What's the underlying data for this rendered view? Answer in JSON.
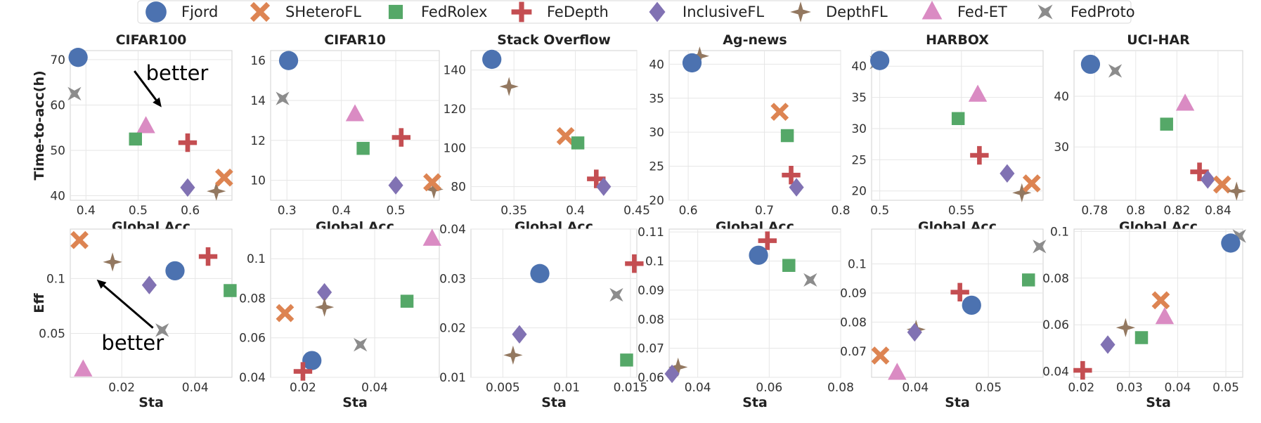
{
  "legend": [
    {
      "name": "Fjord",
      "marker": "circle",
      "color": "#4c72b0"
    },
    {
      "name": "SHeteroFL",
      "marker": "x",
      "color": "#dd8452"
    },
    {
      "name": "FedRolex",
      "marker": "square",
      "color": "#55a868"
    },
    {
      "name": "FeDepth",
      "marker": "plus",
      "color": "#c44e52"
    },
    {
      "name": "InclusiveFL",
      "marker": "diamond",
      "color": "#8172b3"
    },
    {
      "name": "DepthFL",
      "marker": "star4",
      "color": "#937860"
    },
    {
      "name": "Fed-ET",
      "marker": "triangle",
      "color": "#da8bc3"
    },
    {
      "name": "FedProto",
      "marker": "star4x",
      "color": "#8c8c8c"
    }
  ],
  "chart_data": [
    {
      "type": "scatter",
      "title": "CIFAR100",
      "xlabel": "Global Acc",
      "ylabel": "Time-to-acc(h)",
      "xlim": [
        0.37,
        0.68
      ],
      "ylim": [
        39,
        72
      ],
      "xticks": [
        0.4,
        0.5,
        0.6
      ],
      "yticks": [
        40,
        50,
        60,
        70
      ],
      "tick_decimals": 1,
      "points": {
        "Fjord": [
          0.385,
          70.5
        ],
        "FedProto": [
          0.378,
          62.5
        ],
        "Fed-ET": [
          0.515,
          55.3
        ],
        "FedRolex": [
          0.495,
          52.5
        ],
        "FeDepth": [
          0.595,
          51.7
        ],
        "InclusiveFL": [
          0.595,
          41.8
        ],
        "DepthFL": [
          0.65,
          41.0
        ],
        "SHeteroFL": [
          0.665,
          44.0
        ]
      },
      "annotation": {
        "text": "better",
        "text_at": [
          0.515,
          65.5
        ],
        "arrow_from": [
          0.493,
          67.5
        ],
        "arrow_to": [
          0.545,
          59.5
        ]
      }
    },
    {
      "type": "scatter",
      "title": "CIFAR10",
      "xlabel": "Global Acc",
      "ylabel": "",
      "xlim": [
        0.27,
        0.58
      ],
      "ylim": [
        9.0,
        16.5
      ],
      "xticks": [
        0.3,
        0.4,
        0.5
      ],
      "yticks": [
        10,
        12,
        14,
        16
      ],
      "tick_decimals": 1,
      "points": {
        "Fjord": [
          0.303,
          16.0
        ],
        "FedProto": [
          0.292,
          14.1
        ],
        "Fed-ET": [
          0.425,
          13.3
        ],
        "FedRolex": [
          0.44,
          11.6
        ],
        "FeDepth": [
          0.51,
          12.15
        ],
        "InclusiveFL": [
          0.5,
          9.75
        ],
        "DepthFL": [
          0.57,
          9.55
        ],
        "SHeteroFL": [
          0.567,
          9.9
        ]
      }
    },
    {
      "type": "scatter",
      "title": "Stack Overflow",
      "xlabel": "Global Acc",
      "ylabel": "",
      "xlim": [
        0.315,
        0.45
      ],
      "ylim": [
        73,
        150
      ],
      "xticks": [
        0.35,
        0.4,
        0.45
      ],
      "yticks": [
        80,
        100,
        120,
        140
      ],
      "tick_decimals": 2,
      "points": {
        "Fjord": [
          0.332,
          145.5
        ],
        "DepthFL": [
          0.346,
          131.5
        ],
        "SHeteroFL": [
          0.392,
          106.0
        ],
        "FedRolex": [
          0.402,
          102.5
        ],
        "FeDepth": [
          0.417,
          84.0
        ],
        "InclusiveFL": [
          0.423,
          80.0
        ]
      }
    },
    {
      "type": "scatter",
      "title": "Ag-news",
      "xlabel": "Global Acc",
      "ylabel": "",
      "xlim": [
        0.575,
        0.8
      ],
      "ylim": [
        20,
        42
      ],
      "xticks": [
        0.6,
        0.7,
        0.8
      ],
      "yticks": [
        20,
        25,
        30,
        35,
        40
      ],
      "tick_decimals": 1,
      "points": {
        "DepthFL": [
          0.615,
          41.2
        ],
        "Fjord": [
          0.605,
          40.2
        ],
        "SHeteroFL": [
          0.72,
          33.0
        ],
        "FedRolex": [
          0.73,
          29.5
        ],
        "FeDepth": [
          0.735,
          23.7
        ],
        "InclusiveFL": [
          0.742,
          21.9
        ]
      }
    },
    {
      "type": "scatter",
      "title": "HARBOX",
      "xlabel": "Global Acc",
      "ylabel": "",
      "xlim": [
        0.495,
        0.6
      ],
      "ylim": [
        18.5,
        42.5
      ],
      "xticks": [
        0.5,
        0.55
      ],
      "yticks": [
        20,
        25,
        30,
        35,
        40
      ],
      "tick_decimals": 2,
      "points": {
        "FedProto": [
          0.498,
          40.6
        ],
        "Fjord": [
          0.5,
          40.9
        ],
        "Fed-ET": [
          0.56,
          35.4
        ],
        "FedRolex": [
          0.548,
          31.6
        ],
        "FeDepth": [
          0.561,
          25.7
        ],
        "InclusiveFL": [
          0.578,
          22.8
        ],
        "DepthFL": [
          0.587,
          19.7
        ],
        "SHeteroFL": [
          0.593,
          21.2
        ]
      }
    },
    {
      "type": "scatter",
      "title": "UCI-HAR",
      "xlabel": "Global Acc",
      "ylabel": "",
      "xlim": [
        0.77,
        0.852
      ],
      "ylim": [
        19.5,
        49.0
      ],
      "xticks": [
        0.78,
        0.8,
        0.82,
        0.84
      ],
      "yticks": [
        30,
        40
      ],
      "tick_decimals": 2,
      "points": {
        "Fjord": [
          0.778,
          46.3
        ],
        "FedProto": [
          0.79,
          45.0
        ],
        "Fed-ET": [
          0.824,
          38.5
        ],
        "FedRolex": [
          0.815,
          34.5
        ],
        "FeDepth": [
          0.831,
          25.1
        ],
        "InclusiveFL": [
          0.835,
          23.6
        ],
        "SHeteroFL": [
          0.842,
          22.6
        ],
        "DepthFL": [
          0.849,
          21.3
        ]
      }
    },
    {
      "type": "scatter",
      "title": "",
      "xlabel": "Sta",
      "ylabel": "Eff",
      "xlim": [
        0.006,
        0.05
      ],
      "ylim": [
        0.01,
        0.145
      ],
      "xticks": [
        0.02,
        0.04
      ],
      "yticks": [
        0.05,
        0.1
      ],
      "tick_decimals": 2,
      "points": {
        "SHeteroFL": [
          0.0085,
          0.135
        ],
        "DepthFL": [
          0.0175,
          0.115
        ],
        "FeDepth": [
          0.0435,
          0.12
        ],
        "Fjord": [
          0.0345,
          0.107
        ],
        "InclusiveFL": [
          0.0275,
          0.094
        ],
        "FedRolex": [
          0.0495,
          0.089
        ],
        "FedProto": [
          0.031,
          0.053
        ],
        "Fed-ET": [
          0.0095,
          0.017
        ]
      },
      "annotation": {
        "text": "better",
        "text_at": [
          0.0145,
          0.035
        ],
        "arrow_from": [
          0.0285,
          0.055
        ],
        "arrow_to": [
          0.0132,
          0.099
        ]
      }
    },
    {
      "type": "scatter",
      "title": "",
      "xlabel": "Sta",
      "ylabel": "",
      "xlim": [
        0.011,
        0.058
      ],
      "ylim": [
        0.04,
        0.115
      ],
      "xticks": [
        0.02,
        0.04
      ],
      "yticks": [
        0.04,
        0.06,
        0.08,
        0.1
      ],
      "tick_decimals": 2,
      "points": {
        "Fed-ET": [
          0.056,
          0.11
        ],
        "InclusiveFL": [
          0.026,
          0.083
        ],
        "FedRolex": [
          0.049,
          0.0785
        ],
        "DepthFL": [
          0.026,
          0.0755
        ],
        "SHeteroFL": [
          0.015,
          0.0725
        ],
        "FedProto": [
          0.036,
          0.0565
        ],
        "Fjord": [
          0.0225,
          0.0485
        ],
        "FeDepth": [
          0.02,
          0.043
        ]
      }
    },
    {
      "type": "scatter",
      "title": "",
      "xlabel": "Sta",
      "ylabel": "",
      "xlim": [
        0.0025,
        0.0155
      ],
      "ylim": [
        0.01,
        0.04
      ],
      "xticks": [
        0.005,
        0.01,
        0.015
      ],
      "yticks": [
        0.01,
        0.02,
        0.03,
        0.04
      ],
      "tick_decimals": 3,
      "points": {
        "FeDepth": [
          0.0153,
          0.033
        ],
        "Fjord": [
          0.0079,
          0.031
        ],
        "FedProto": [
          0.0139,
          0.0267
        ],
        "InclusiveFL": [
          0.0063,
          0.0187
        ],
        "DepthFL": [
          0.0058,
          0.0145
        ],
        "FedRolex": [
          0.0147,
          0.0135
        ]
      }
    },
    {
      "type": "scatter",
      "title": "",
      "xlabel": "Sta",
      "ylabel": "",
      "xlim": [
        0.032,
        0.08
      ],
      "ylim": [
        0.06,
        0.111
      ],
      "xticks": [
        0.04,
        0.06,
        0.08
      ],
      "yticks": [
        0.06,
        0.07,
        0.08,
        0.09,
        0.1,
        0.11
      ],
      "tick_decimals": 2,
      "points": {
        "FeDepth": [
          0.0595,
          0.107
        ],
        "Fjord": [
          0.057,
          0.102
        ],
        "FedRolex": [
          0.0655,
          0.0985
        ],
        "FedProto": [
          0.0715,
          0.0935
        ],
        "DepthFL": [
          0.0345,
          0.0635
        ],
        "InclusiveFL": [
          0.0328,
          0.0612
        ]
      }
    },
    {
      "type": "scatter",
      "title": "",
      "xlabel": "Sta",
      "ylabel": "",
      "xlim": [
        0.034,
        0.0575
      ],
      "ylim": [
        0.061,
        0.112
      ],
      "xticks": [
        0.04,
        0.05
      ],
      "yticks": [
        0.07,
        0.08,
        0.09,
        0.1
      ],
      "tick_decimals": 2,
      "points": {
        "FedProto": [
          0.057,
          0.106
        ],
        "FedRolex": [
          0.0555,
          0.0945
        ],
        "FeDepth": [
          0.0461,
          0.0903
        ],
        "Fjord": [
          0.0477,
          0.0858
        ],
        "DepthFL": [
          0.0401,
          0.0775
        ],
        "InclusiveFL": [
          0.0399,
          0.0765
        ],
        "SHeteroFL": [
          0.0352,
          0.0685
        ],
        "Fed-ET": [
          0.0375,
          0.0625
        ]
      }
    },
    {
      "type": "scatter",
      "title": "",
      "xlabel": "Sta",
      "ylabel": "",
      "xlim": [
        0.0185,
        0.0535
      ],
      "ylim": [
        0.0375,
        0.101
      ],
      "xticks": [
        0.02,
        0.03,
        0.04,
        0.05
      ],
      "yticks": [
        0.04,
        0.06,
        0.08,
        0.1
      ],
      "tick_decimals": 2,
      "points": {
        "FedProto": [
          0.0528,
          0.098
        ],
        "Fjord": [
          0.051,
          0.095
        ],
        "SHeteroFL": [
          0.0365,
          0.0705
        ],
        "Fed-ET": [
          0.0373,
          0.0632
        ],
        "DepthFL": [
          0.0292,
          0.0588
        ],
        "FedRolex": [
          0.0325,
          0.0545
        ],
        "InclusiveFL": [
          0.0255,
          0.0515
        ],
        "FeDepth": [
          0.0203,
          0.0405
        ]
      }
    }
  ]
}
